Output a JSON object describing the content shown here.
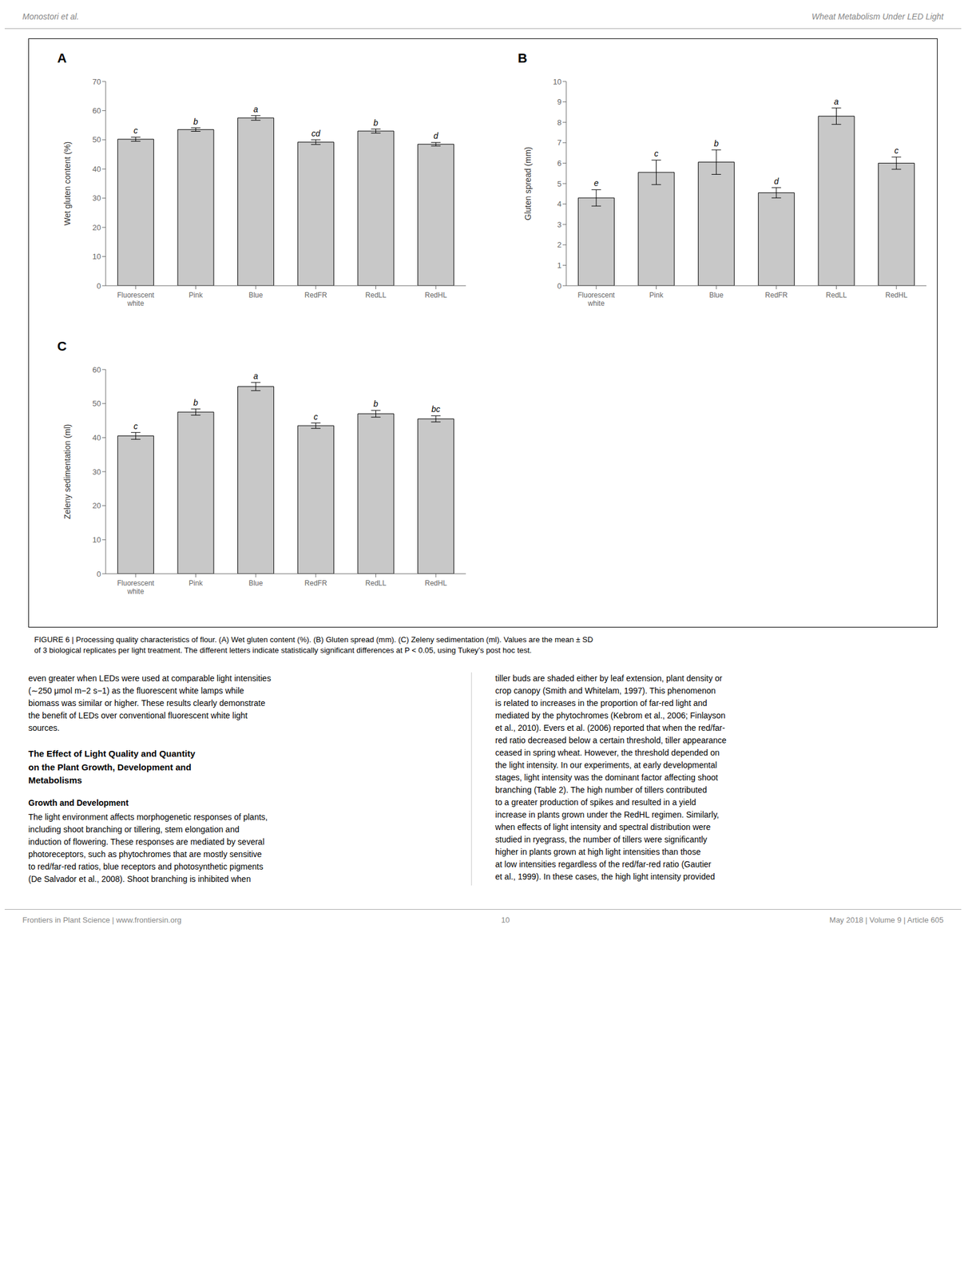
{
  "chart_data": [
    {
      "type": "bar",
      "title": "A",
      "ylabel": "Wet gluten content (%)",
      "categories": [
        "Fluorescent\nwhite",
        "Pink",
        "Blue",
        "RedFR",
        "RedLL",
        "RedHL"
      ],
      "values": [
        50.2,
        53.5,
        57.5,
        49.2,
        53.0,
        48.5
      ],
      "errors": [
        0.7,
        0.6,
        0.8,
        0.8,
        0.7,
        0.6
      ],
      "annotations": [
        "c",
        "b",
        "a",
        "cd",
        "b",
        "d"
      ],
      "ylim": [
        0,
        70
      ],
      "yticks": [
        0,
        10,
        20,
        30,
        40,
        50,
        60,
        70
      ],
      "color": "#c8c8c8",
      "grid": false
    },
    {
      "type": "bar",
      "title": "B",
      "ylabel": "Gluten spread (mm)",
      "categories": [
        "Fluorescent\nwhite",
        "Pink",
        "Blue",
        "RedFR",
        "RedLL",
        "RedHL"
      ],
      "values": [
        4.3,
        5.55,
        6.05,
        4.55,
        8.3,
        6.0
      ],
      "errors": [
        0.4,
        0.6,
        0.6,
        0.25,
        0.4,
        0.3
      ],
      "annotations": [
        "e",
        "c",
        "b",
        "d",
        "a",
        "c"
      ],
      "ylim": [
        0,
        10
      ],
      "yticks": [
        0,
        1,
        2,
        3,
        4,
        5,
        6,
        7,
        8,
        9,
        10
      ],
      "color": "#c8c8c8",
      "grid": false
    },
    {
      "type": "bar",
      "title": "C",
      "ylabel": "Zeleny sedimentation (ml)",
      "categories": [
        "Fluorescent\nwhite",
        "Pink",
        "Blue",
        "RedFR",
        "RedLL",
        "RedHL"
      ],
      "values": [
        40.5,
        47.5,
        55.0,
        43.5,
        47.0,
        45.5
      ],
      "errors": [
        1.0,
        0.9,
        1.2,
        0.8,
        1.0,
        0.9
      ],
      "annotations": [
        "c",
        "b",
        "a",
        "c",
        "b",
        "bc"
      ],
      "ylim": [
        0,
        60
      ],
      "yticks": [
        0,
        10,
        20,
        30,
        40,
        50,
        60
      ],
      "color": "#c8c8c8",
      "grid": false
    }
  ],
  "annotations": [
    "Monostori et al.",
    "Wheat Metabolism Under LED Light",
    "FIGURE 6 | Processing quality characteristics of flour. (A) Wet gluten content (%). (B) Gluten spread (mm). (C) Zeleny sedimentation (ml). Values are the mean ± SD\nof 3 biological replicates per light treatment. The different letters indicate statistically significant differences at P < 0.05, using Tukey’s post hoc test.",
    "even greater when LEDs were used at comparable light intensities\n(∼250 μmol m−2 s−1) as the fluorescent white lamps while\nbiomass was similar or higher. These results clearly demonstrate\nthe benefit of LEDs over conventional fluorescent white light\nsources.",
    "The Effect of Light Quality and Quantity\non the Plant Growth, Development and\nMetabolisms",
    "Growth and Development",
    "The light environment affects morphogenetic responses of plants,\nincluding shoot branching or tillering, stem elongation and\ninduction of flowering. These responses are mediated by several\nphotoreceptors, such as phytochromes that are mostly sensitive\nto red/far-red ratios, blue receptors and photosynthetic pigments\n(De Salvador et al., 2008). Shoot branching is inhibited when",
    "tiller buds are shaded either by leaf extension, plant density or\ncrop canopy (Smith and Whitelam, 1997). This phenomenon\nis related to increases in the proportion of far-red light and\nmediated by the phytochromes (Kebrom et al., 2006; Finlayson\net al., 2010). Evers et al. (2006) reported that when the red/far-\nred ratio decreased below a certain threshold, tiller appearance\nceased in spring wheat. However, the threshold depended on\nthe light intensity. In our experiments, at early developmental\nstages, light intensity was the dominant factor affecting shoot\nbranching (Table 2). The high number of tillers contributed\nto a greater production of spikes and resulted in a yield\nincrease in plants grown under the RedHL regimen. Similarly,\nwhen effects of light intensity and spectral distribution were\nstudied in ryegrass, the number of tillers were significantly\nhigher in plants grown at high light intensities than those\nat low intensities regardless of the red/far-red ratio (Gautier\net al., 1999). In these cases, the high light intensity provided",
    "Frontiers in Plant Science | www.frontiersin.org",
    "10",
    "May 2018 | Volume 9 | Article 605"
  ]
}
